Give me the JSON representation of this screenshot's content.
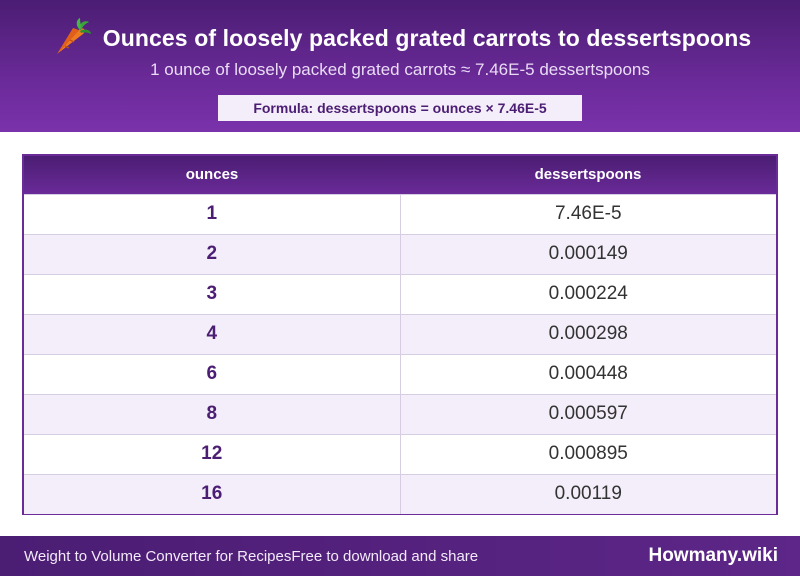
{
  "header": {
    "icon": "carrot-icon",
    "title": "Ounces of loosely packed grated carrots to dessertspoons",
    "subtitle": "1 ounce of loosely packed grated carrots ≈ 7.46E-5 dessertspoons",
    "formula": "Formula: dessertspoons = ounces × 7.46E-5"
  },
  "table": {
    "columns": [
      "ounces",
      "dessertspoons"
    ],
    "rows": [
      [
        "1",
        "7.46E-5"
      ],
      [
        "2",
        "0.000149"
      ],
      [
        "3",
        "0.000224"
      ],
      [
        "4",
        "0.000298"
      ],
      [
        "6",
        "0.000448"
      ],
      [
        "8",
        "0.000597"
      ],
      [
        "12",
        "0.000895"
      ],
      [
        "16",
        "0.00119"
      ]
    ]
  },
  "footer": {
    "left": "Weight to Volume Converter for Recipes",
    "middle": "Free to download and share",
    "brand": "Howmany.wiki"
  },
  "colors": {
    "primary": "#4b1d73",
    "accent": "#6a2a98",
    "row_alt": "#f3eef9"
  }
}
